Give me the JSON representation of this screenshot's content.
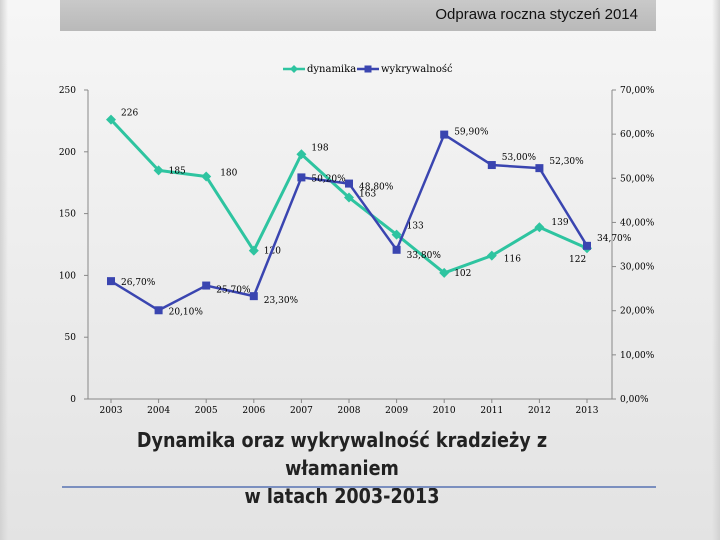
{
  "header": {
    "title": "Odprawa roczna styczeń 2014"
  },
  "caption": {
    "line1": "Dynamika oraz wykrywalność kradzieży z włamaniem",
    "line2": "w latach 2003-2013"
  },
  "colors": {
    "dynamika": "#2ec4a0",
    "wykrywalnosc": "#3a45b0"
  },
  "chart_data": {
    "type": "line",
    "title": "Dynamika oraz wykrywalność kradzieży z włamaniem w latach 2003-2013",
    "categories": [
      "2003",
      "2004",
      "2005",
      "2006",
      "2007",
      "2008",
      "2009",
      "2010",
      "2011",
      "2012",
      "2013"
    ],
    "legend_position": "top",
    "grid": false,
    "left_axis": {
      "ylim": [
        0,
        250
      ],
      "ticks": [
        "0",
        "50",
        "100",
        "150",
        "200",
        "250"
      ]
    },
    "right_axis": {
      "ylim": [
        0,
        70
      ],
      "ticks": [
        "0,00%",
        "10,00%",
        "20,00%",
        "30,00%",
        "40,00%",
        "50,00%",
        "60,00%",
        "70,00%"
      ]
    },
    "series": [
      {
        "name": "dynamika",
        "axis": "left",
        "values": [
          226,
          185,
          180,
          120,
          198,
          163,
          133,
          102,
          116,
          139,
          122
        ],
        "labels": [
          "226",
          "185",
          "180",
          "120",
          "198",
          "163",
          "133",
          "102",
          "116",
          "139",
          "122"
        ]
      },
      {
        "name": "wykrywalność",
        "axis": "right",
        "values": [
          26.7,
          20.1,
          25.7,
          23.3,
          50.2,
          48.8,
          33.8,
          59.9,
          53.0,
          52.3,
          34.7
        ],
        "labels": [
          "26,70%",
          "20,10%",
          "25,70%",
          "23,30%",
          "50,20%",
          "48,80%",
          "33,80%",
          "59,90%",
          "53,00%",
          "52,30%",
          "34,70%"
        ]
      }
    ]
  }
}
